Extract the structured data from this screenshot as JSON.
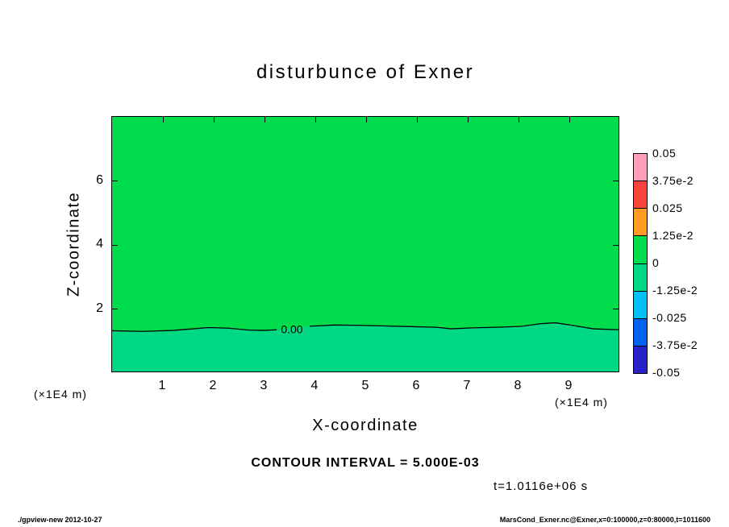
{
  "title": "disturbunce of Exner",
  "annotations": {
    "contour_interval": "CONTOUR INTERVAL = 5.000E-03",
    "time": "t=1.0116e+06 s"
  },
  "footer": {
    "left": "./gpview-new  2012-10-27",
    "right": "MarsCond_Exner.nc@Exner,x=0:100000,z=0:80000,t=1011600"
  },
  "chart_data": {
    "type": "heatmap",
    "subtype": "filled-contour",
    "title": "disturbunce of Exner",
    "xlabel": "X-coordinate",
    "ylabel": "Z-coordinate",
    "x_unit_label": "(×1E4 m)",
    "y_unit_label": "(×1E4 m)",
    "xlim": [
      0,
      10
    ],
    "ylim": [
      0,
      8
    ],
    "x_ticks": [
      1,
      2,
      3,
      4,
      5,
      6,
      7,
      8,
      9
    ],
    "y_ticks": [
      2,
      4,
      6
    ],
    "grid": false,
    "contour_interval_text": "CONTOUR INTERVAL = 5.000E-03",
    "time_label": "t=1.0116e+06 s",
    "fill": {
      "above_zero_color": "#00dc4b",
      "below_zero_color": "#00d984"
    },
    "zero_contour": {
      "label": "0.00",
      "label_x": 3.55,
      "label_z": 1.33,
      "segments": [
        [
          [
            0,
            1.28
          ],
          [
            0.6,
            1.26
          ],
          [
            1.2,
            1.29
          ],
          [
            1.6,
            1.34
          ],
          [
            1.9,
            1.38
          ],
          [
            2.3,
            1.36
          ],
          [
            2.7,
            1.3
          ],
          [
            3.0,
            1.29
          ],
          [
            3.25,
            1.31
          ]
        ],
        [
          [
            3.9,
            1.42
          ],
          [
            4.4,
            1.46
          ],
          [
            4.9,
            1.45
          ],
          [
            5.4,
            1.43
          ],
          [
            5.9,
            1.41
          ],
          [
            6.4,
            1.39
          ],
          [
            6.7,
            1.34
          ],
          [
            7.1,
            1.37
          ],
          [
            7.6,
            1.39
          ],
          [
            8.1,
            1.42
          ],
          [
            8.45,
            1.5
          ],
          [
            8.75,
            1.53
          ],
          [
            9.05,
            1.46
          ],
          [
            9.5,
            1.34
          ],
          [
            10,
            1.31
          ]
        ]
      ],
      "gap_bridge": [
        [
          3.55,
          1.37
        ]
      ]
    },
    "colorbar": {
      "position": "right",
      "labels": [
        "0.05",
        "3.75e-2",
        "0.025",
        "1.25e-2",
        "0",
        "-1.25e-2",
        "-0.025",
        "-3.75e-2",
        "-0.05"
      ],
      "segment_colors": [
        "#ff9dbb",
        "#f9463c",
        "#ff9a23",
        "#00dc4b",
        "#00d984",
        "#00c0f5",
        "#0064f0",
        "#2823c8"
      ]
    }
  }
}
